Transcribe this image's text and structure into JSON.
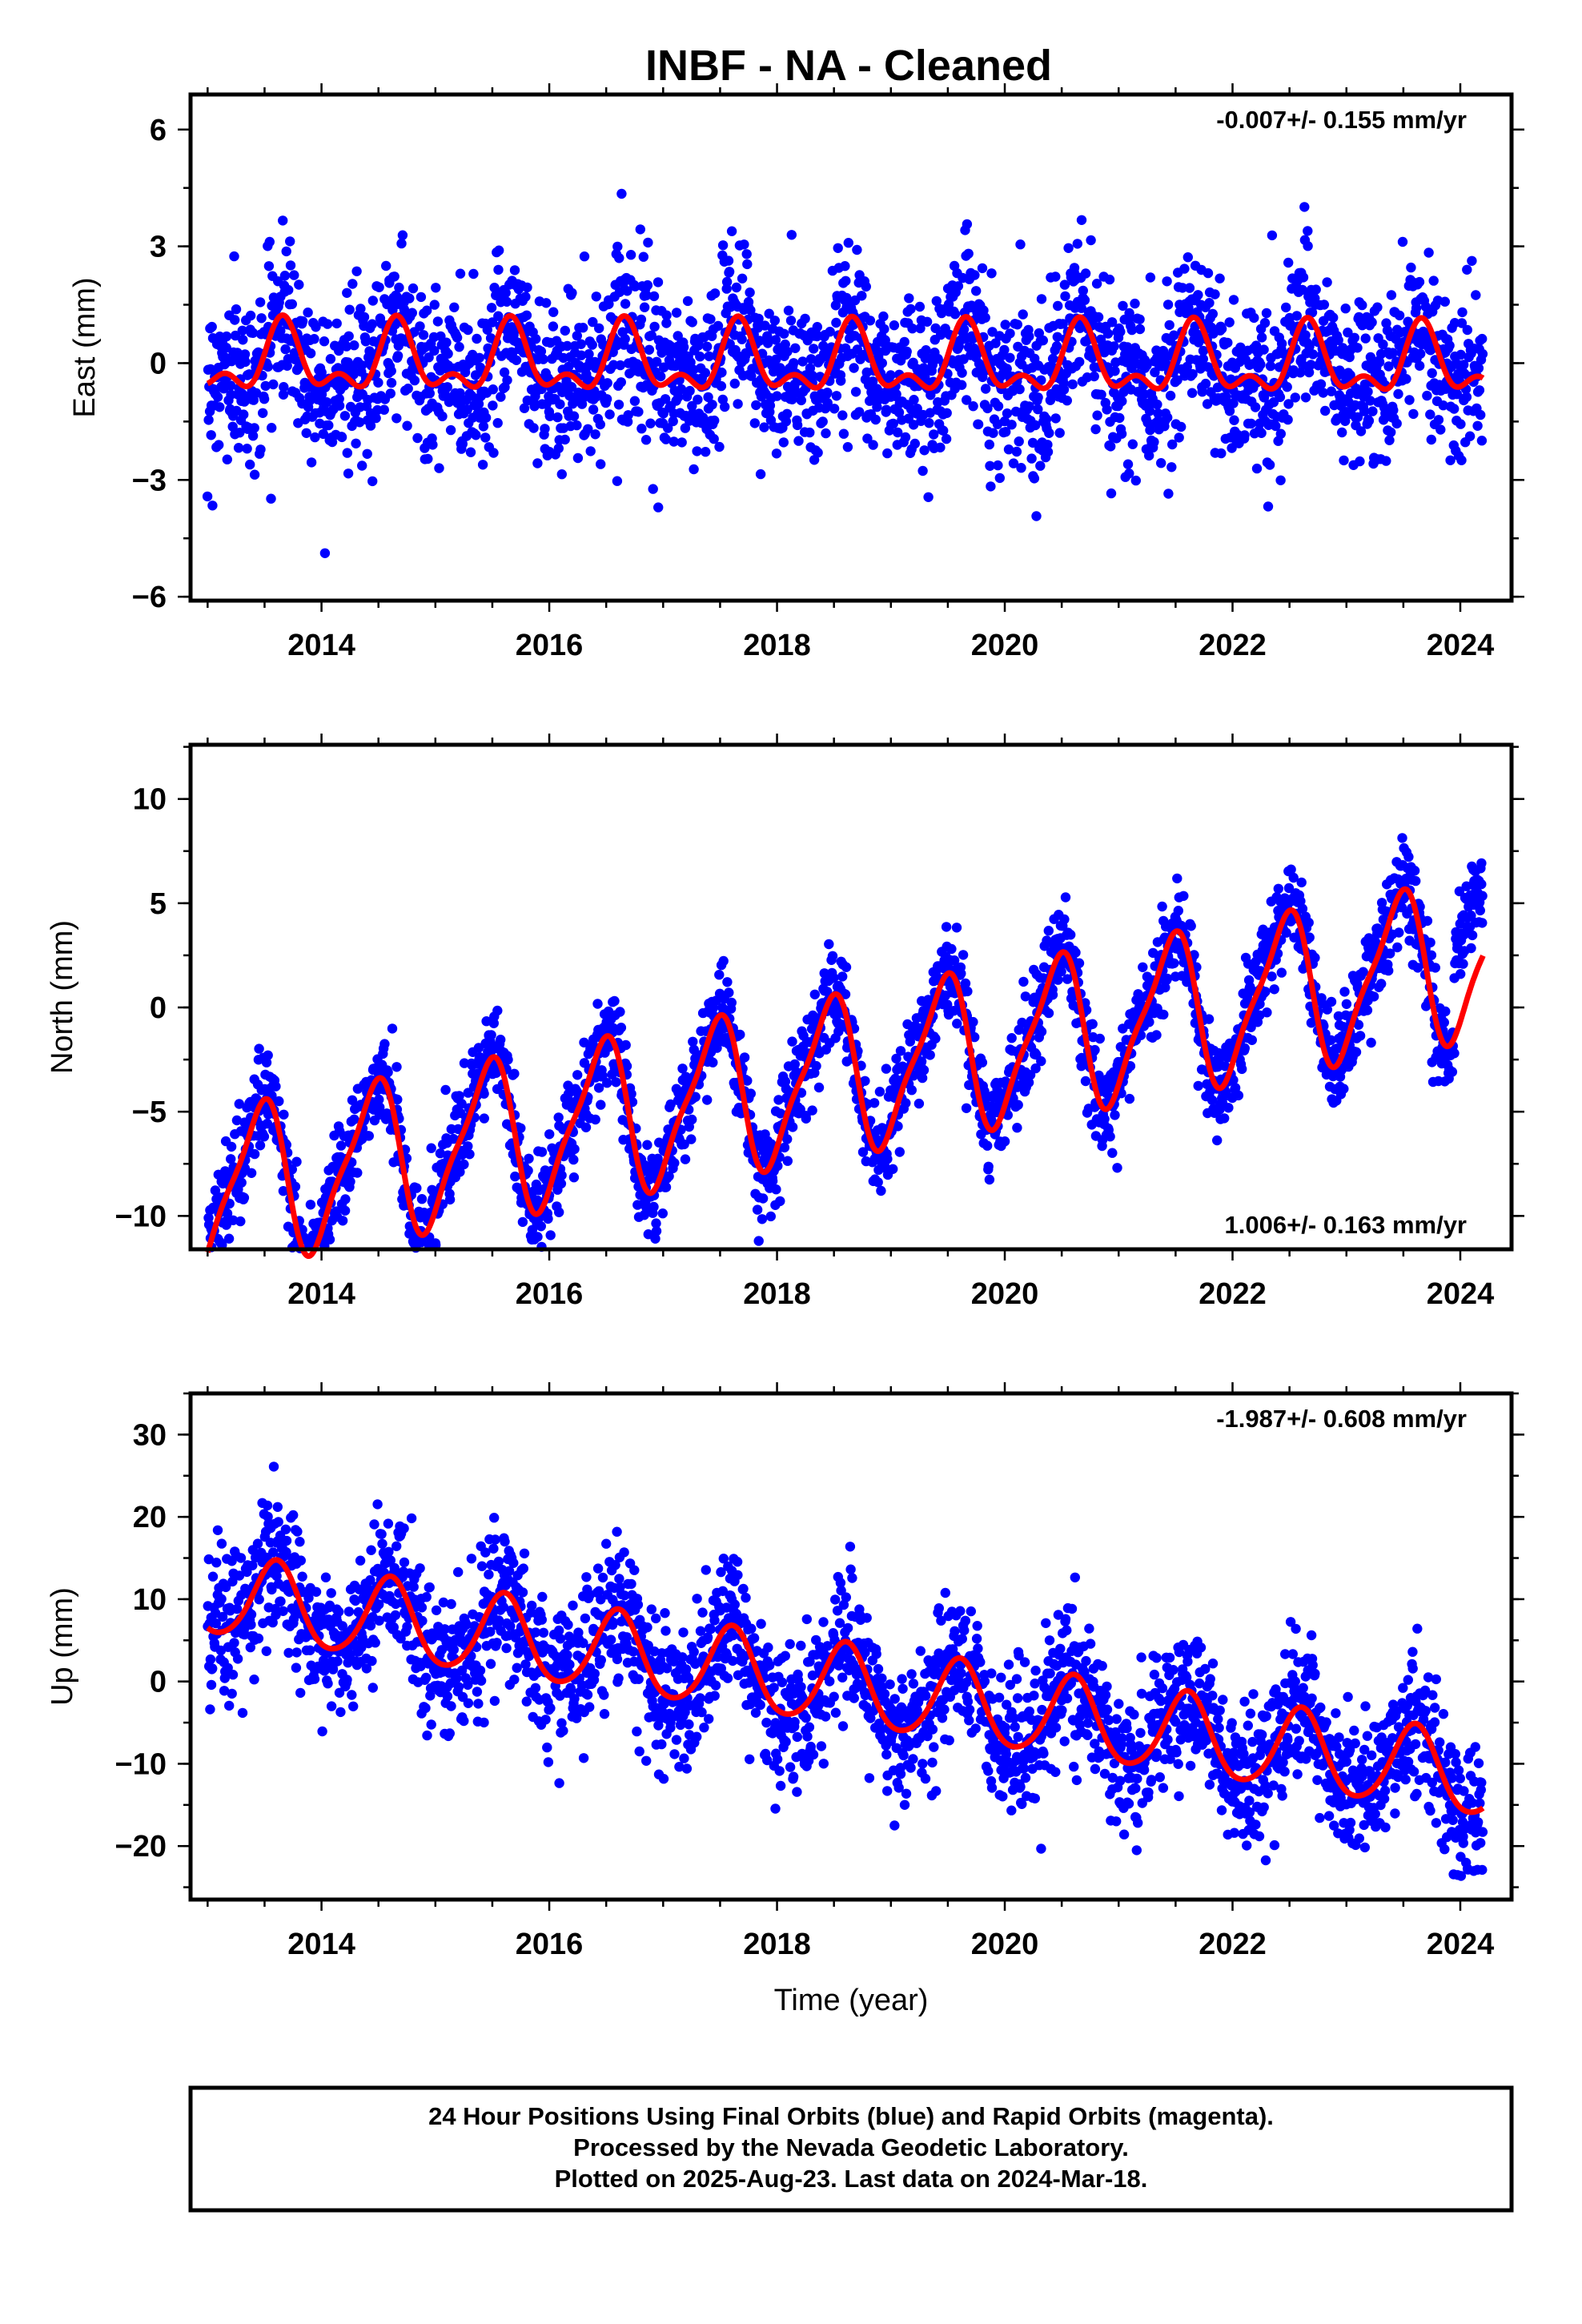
{
  "title": "INBF  - NA - Cleaned",
  "chart_data": [
    {
      "type": "scatter",
      "component": "east",
      "ylabel": "East (mm)",
      "xlabel": "",
      "xlim": [
        2012.85,
        2024.45
      ],
      "ylim": [
        -6.1,
        6.9
      ],
      "xticks": [
        2014,
        2016,
        2018,
        2020,
        2022,
        2024
      ],
      "yticks": [
        -6,
        -3,
        0,
        3,
        6
      ],
      "ytick_labels": [
        "−6",
        "−3",
        "0",
        "3",
        "6"
      ],
      "rate_text": "-0.007+/- 0.155 mm/yr",
      "rate_position": "top-right",
      "series": [
        {
          "name": "Final Orbits",
          "color": "#0000ff",
          "x_range": [
            2013.0,
            2024.2
          ],
          "note_on_shape": "scatter, seasonal scatter around zero"
        },
        {
          "color": "#ff0000",
          "x_range": [
            2013.0,
            2024.2
          ]
        }
      ],
      "model": {
        "trend_mm_per_yr": -0.007,
        "offset": 0.0,
        "seasonal_amplitude": 1.05
      }
    },
    {
      "type": "scatter",
      "component": "north",
      "ylabel": "North (mm)",
      "xlabel": "",
      "xlim": [
        2012.85,
        2024.45
      ],
      "ylim": [
        -11.6,
        12.6
      ],
      "xticks": [
        2014,
        2016,
        2018,
        2020,
        2022,
        2024
      ],
      "yticks": [
        -10,
        -5,
        0,
        5,
        10
      ],
      "ytick_labels": [
        "−10",
        "−5",
        "0",
        "5",
        "10"
      ],
      "rate_text": "1.006+/- 0.163 mm/yr",
      "rate_position": "bottom-right",
      "series": [
        {
          "name": "Final Orbits",
          "color": "#0000ff",
          "x_range": [
            2013.0,
            2024.2
          ]
        },
        {
          "color": "#ff0000",
          "x_range": [
            2013.0,
            2024.2
          ]
        }
      ],
      "model": {
        "trend_mm_per_yr": 1.006,
        "offset": -3.3,
        "seasonal_amplitude": 3.8
      }
    },
    {
      "type": "scatter",
      "component": "up",
      "ylabel": "Up (mm)",
      "xlabel": "Time (year)",
      "xlim": [
        2012.85,
        2024.45
      ],
      "ylim": [
        -26.5,
        35.0
      ],
      "xticks": [
        2014,
        2016,
        2018,
        2020,
        2022,
        2024
      ],
      "yticks": [
        -20,
        -10,
        0,
        10,
        20,
        30
      ],
      "ytick_labels": [
        "−20",
        "−10",
        "0",
        "10",
        "20",
        "30"
      ],
      "rate_text": "-1.987+/- 0.608 mm/yr",
      "rate_position": "top-right",
      "series": [
        {
          "name": "Final Orbits",
          "color": "#0000ff",
          "x_range": [
            2013.0,
            2024.2
          ]
        },
        {
          "color": "#ff0000",
          "x_range": [
            2013.0,
            2024.2
          ]
        }
      ],
      "model": {
        "trend_mm_per_yr": -1.987,
        "offset": 10.5,
        "seasonal_amplitude": 4.9
      }
    }
  ],
  "footer": {
    "line1": "24 Hour Positions Using Final Orbits (blue) and Rapid Orbits (magenta).",
    "line2": "Processed by the Nevada Geodetic Laboratory.",
    "line3": "Plotted on 2025-Aug-23. Last data on 2024-Mar-18."
  },
  "colors": {
    "final_orbits": "#0000ff",
    "model_fit": "#ff0000",
    "frame": "#000000"
  }
}
